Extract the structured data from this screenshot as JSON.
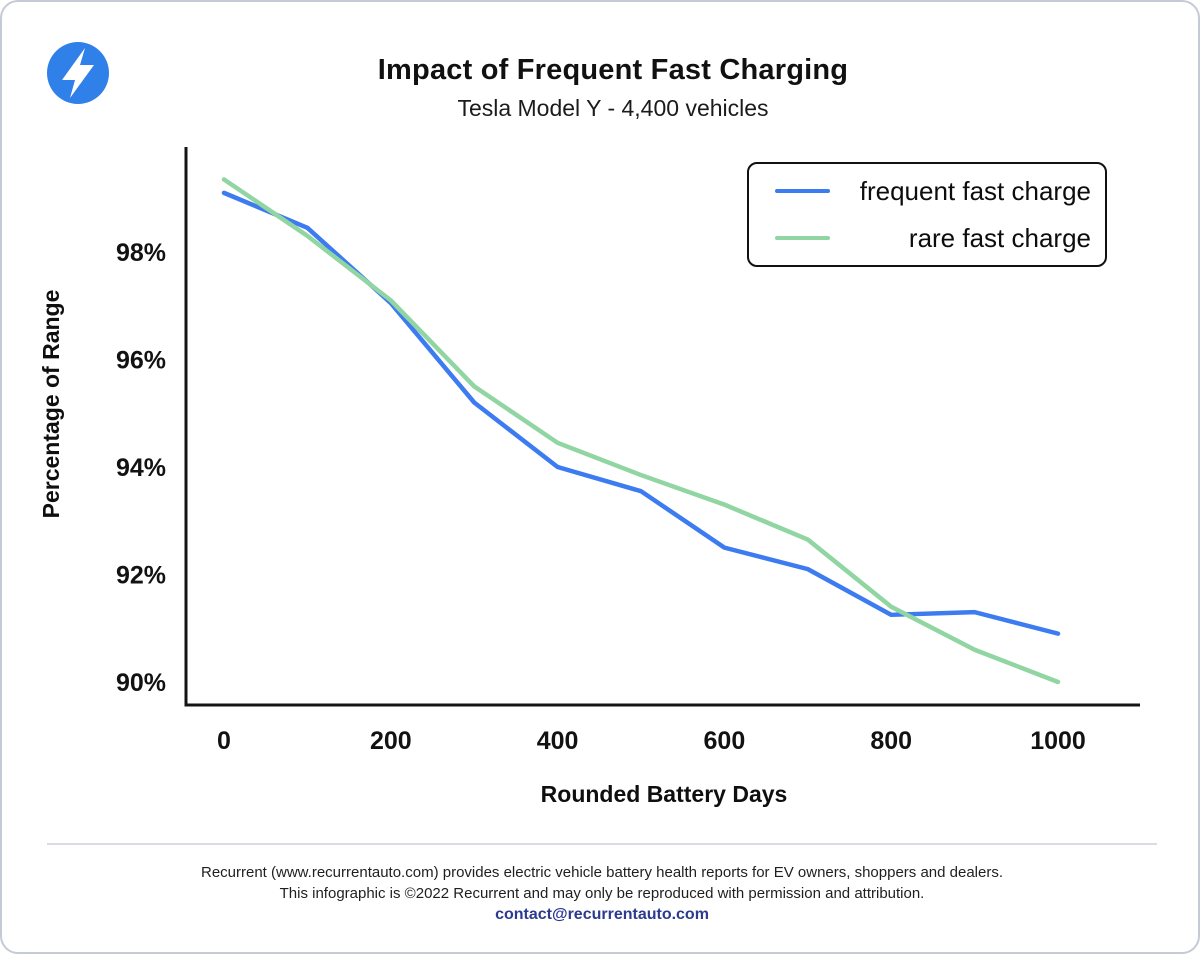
{
  "logo": {
    "icon": "lightning-bolt",
    "background_color": "#2f80e8",
    "bolt_color": "#ffffff"
  },
  "header": {
    "title": "Impact of Frequent Fast Charging",
    "subtitle": "Tesla Model Y - 4,400 vehicles"
  },
  "chart_data": {
    "type": "line",
    "title": "Impact of Frequent Fast Charging",
    "subtitle": "Tesla Model Y - 4,400 vehicles",
    "xlabel": "Rounded Battery Days",
    "ylabel": "Percentage of Range",
    "x": [
      0,
      100,
      200,
      300,
      400,
      500,
      600,
      700,
      800,
      900,
      1000
    ],
    "series": [
      {
        "name": "frequent fast charge",
        "color": "#3d7bf0",
        "values": [
          99.1,
          98.45,
          97.05,
          95.2,
          94.0,
          93.55,
          92.5,
          92.1,
          91.25,
          91.3,
          90.9
        ]
      },
      {
        "name": "rare fast charge",
        "color": "#90d5a2",
        "values": [
          99.35,
          98.3,
          97.1,
          95.5,
          94.45,
          93.85,
          93.3,
          92.65,
          91.4,
          90.6,
          90.0
        ]
      }
    ],
    "xticks": [
      0,
      200,
      400,
      600,
      800,
      1000
    ],
    "yticks": [
      {
        "value": 98,
        "label": "98%"
      },
      {
        "value": 96,
        "label": "96%"
      },
      {
        "value": 94,
        "label": "94%"
      },
      {
        "value": 92,
        "label": "92%"
      },
      {
        "value": 90,
        "label": "90%"
      }
    ],
    "xlim": [
      -46,
      1098
    ],
    "ylim": [
      89.6,
      99.95
    ],
    "grid": false,
    "legend_position": "upper right"
  },
  "footer": {
    "line1": "Recurrent (www.recurrentauto.com) provides electric vehicle battery health reports for EV owners, shoppers and dealers.",
    "line2": "This infographic is ©2022 Recurrent and may only be reproduced with permission and attribution.",
    "contact": "contact@recurrentauto.com"
  }
}
